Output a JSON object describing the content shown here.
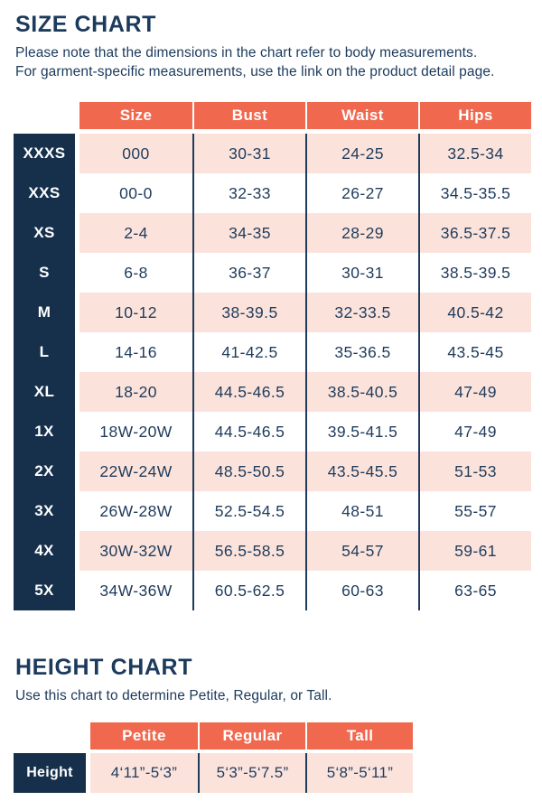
{
  "colors": {
    "coral": "#F0694F",
    "pink": "#FBE3DC",
    "navy": "#16304C",
    "text_navy": "#1B3A5C"
  },
  "size_chart": {
    "title": "SIZE CHART",
    "note": "Please note that the dimensions in the chart refer to body measurements.\nFor garment-specific measurements, use the link on the product detail page.",
    "columns": [
      "Size",
      "Bust",
      "Waist",
      "Hips"
    ],
    "rows": [
      {
        "label": "XXXS",
        "size": "000",
        "bust": "30-31",
        "waist": "24-25",
        "hips": "32.5-34"
      },
      {
        "label": "XXS",
        "size": "00-0",
        "bust": "32-33",
        "waist": "26-27",
        "hips": "34.5-35.5"
      },
      {
        "label": "XS",
        "size": "2-4",
        "bust": "34-35",
        "waist": "28-29",
        "hips": "36.5-37.5"
      },
      {
        "label": "S",
        "size": "6-8",
        "bust": "36-37",
        "waist": "30-31",
        "hips": "38.5-39.5"
      },
      {
        "label": "M",
        "size": "10-12",
        "bust": "38-39.5",
        "waist": "32-33.5",
        "hips": "40.5-42"
      },
      {
        "label": "L",
        "size": "14-16",
        "bust": "41-42.5",
        "waist": "35-36.5",
        "hips": "43.5-45"
      },
      {
        "label": "XL",
        "size": "18-20",
        "bust": "44.5-46.5",
        "waist": "38.5-40.5",
        "hips": "47-49"
      },
      {
        "label": "1X",
        "size": "18W-20W",
        "bust": "44.5-46.5",
        "waist": "39.5-41.5",
        "hips": "47-49"
      },
      {
        "label": "2X",
        "size": "22W-24W",
        "bust": "48.5-50.5",
        "waist": "43.5-45.5",
        "hips": "51-53"
      },
      {
        "label": "3X",
        "size": "26W-28W",
        "bust": "52.5-54.5",
        "waist": "48-51",
        "hips": "55-57"
      },
      {
        "label": "4X",
        "size": "30W-32W",
        "bust": "56.5-58.5",
        "waist": "54-57",
        "hips": "59-61"
      },
      {
        "label": "5X",
        "size": "34W-36W",
        "bust": "60.5-62.5",
        "waist": "60-63",
        "hips": "63-65"
      }
    ]
  },
  "height_chart": {
    "title": "HEIGHT CHART",
    "note": "Use this chart to determine Petite, Regular, or Tall.",
    "columns": [
      "Petite",
      "Regular",
      "Tall"
    ],
    "row_label": "Height",
    "values": [
      "4‘11”-5‘3”",
      "5‘3”-5‘7.5”",
      "5‘8”-5‘11”"
    ]
  }
}
